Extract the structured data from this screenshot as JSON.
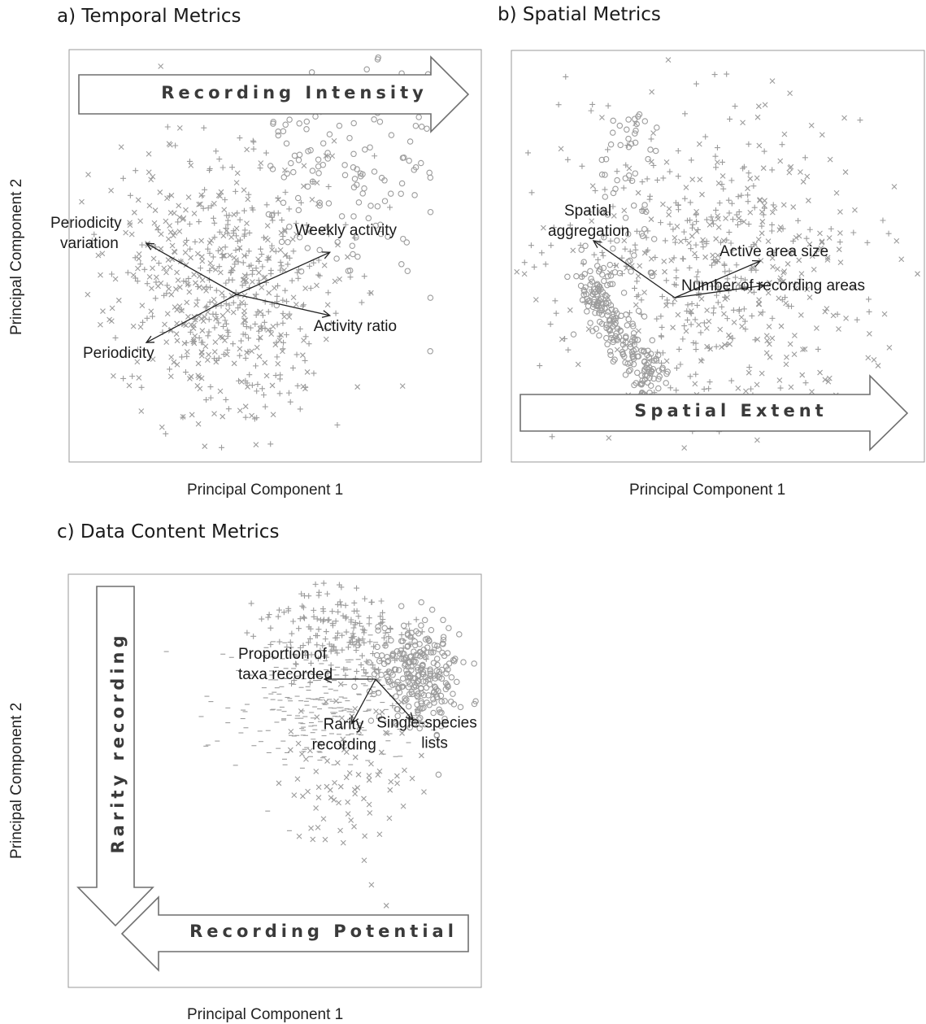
{
  "figure": {
    "panel_titles": [
      "a) Temporal Metrics",
      "b) Spatial Metrics",
      "c) Data Content Metrics"
    ],
    "xlabel": "Principal Component 1",
    "ylabel": "Principal Component 2",
    "arrows": {
      "a": "Recording Intensity",
      "b": "Spatial Extent",
      "c_vertical": "Rarity recording",
      "c_horizontal": "Recording Potential"
    }
  },
  "chart_data": [
    {
      "panel": "a",
      "type": "scatter",
      "title": "a) Temporal Metrics",
      "xlabel": "Principal Component 1",
      "ylabel": "Principal Component 2",
      "grid": false,
      "marker_symbols": [
        "x",
        "+",
        "o"
      ],
      "axis_ticks": "none",
      "loadings": [
        {
          "label": "Periodicity variation",
          "lines": [
            "Periodicity",
            "variation"
          ],
          "dx": -0.3,
          "dy": 0.17
        },
        {
          "label": "Weekly activity",
          "lines": [
            "Weekly activity"
          ],
          "dx": 0.31,
          "dy": 0.14
        },
        {
          "label": "Activity ratio",
          "lines": [
            "Activity ratio"
          ],
          "dx": 0.31,
          "dy": -0.07
        },
        {
          "label": "Periodicity",
          "lines": [
            "Periodicity"
          ],
          "dx": -0.3,
          "dy": -0.16
        }
      ],
      "big_arrow": {
        "label": "Recording Intensity",
        "direction": "right"
      },
      "point_cloud": {
        "center": [
          -0.05,
          0.0
        ],
        "spread": [
          0.26,
          0.2
        ]
      }
    },
    {
      "panel": "b",
      "type": "scatter",
      "title": "b) Spatial Metrics",
      "xlabel": "Principal Component 1",
      "ylabel": "Principal Component 2",
      "grid": false,
      "marker_symbols": [
        "x",
        "+",
        "o"
      ],
      "axis_ticks": "none",
      "loadings": [
        {
          "label": "Spatial aggregation",
          "lines": [
            "Spatial",
            "aggregation"
          ],
          "dx": -0.2,
          "dy": 0.14
        },
        {
          "label": "Active area size",
          "lines": [
            "Active area size"
          ],
          "dx": 0.21,
          "dy": 0.09
        },
        {
          "label": "Number of recording areas",
          "lines": [
            "Number of recording areas"
          ],
          "dx": 0.22,
          "dy": 0.03
        }
      ],
      "big_arrow": {
        "label": "Spatial Extent",
        "direction": "right"
      },
      "point_cloud": {
        "center": [
          0.05,
          0.05
        ],
        "spread": [
          0.28,
          0.32
        ]
      }
    },
    {
      "panel": "c",
      "type": "scatter",
      "title": "c) Data Content Metrics",
      "xlabel": "Principal Component 1",
      "ylabel": "Principal Component 2",
      "grid": false,
      "marker_symbols": [
        "x",
        "+",
        "o",
        "-"
      ],
      "axis_ticks": "none",
      "loadings": [
        {
          "label": "Proportion of taxa recorded",
          "lines": [
            "Proportion of",
            "taxa recorded"
          ],
          "dx": -0.15,
          "dy": 0.0
        },
        {
          "label": "Single-species lists",
          "lines": [
            "Single-species",
            "lists"
          ],
          "dx": 0.11,
          "dy": -0.12
        },
        {
          "label": "Rarity recording",
          "lines": [
            "Rarity",
            "recording"
          ],
          "dx": -0.07,
          "dy": -0.13
        }
      ],
      "big_arrows": [
        {
          "label": "Rarity recording",
          "direction": "down"
        },
        {
          "label": "Recording Potential",
          "direction": "left"
        }
      ],
      "point_cloud": {
        "center": [
          0.12,
          0.1
        ],
        "spread": [
          0.22,
          0.3
        ]
      }
    }
  ]
}
